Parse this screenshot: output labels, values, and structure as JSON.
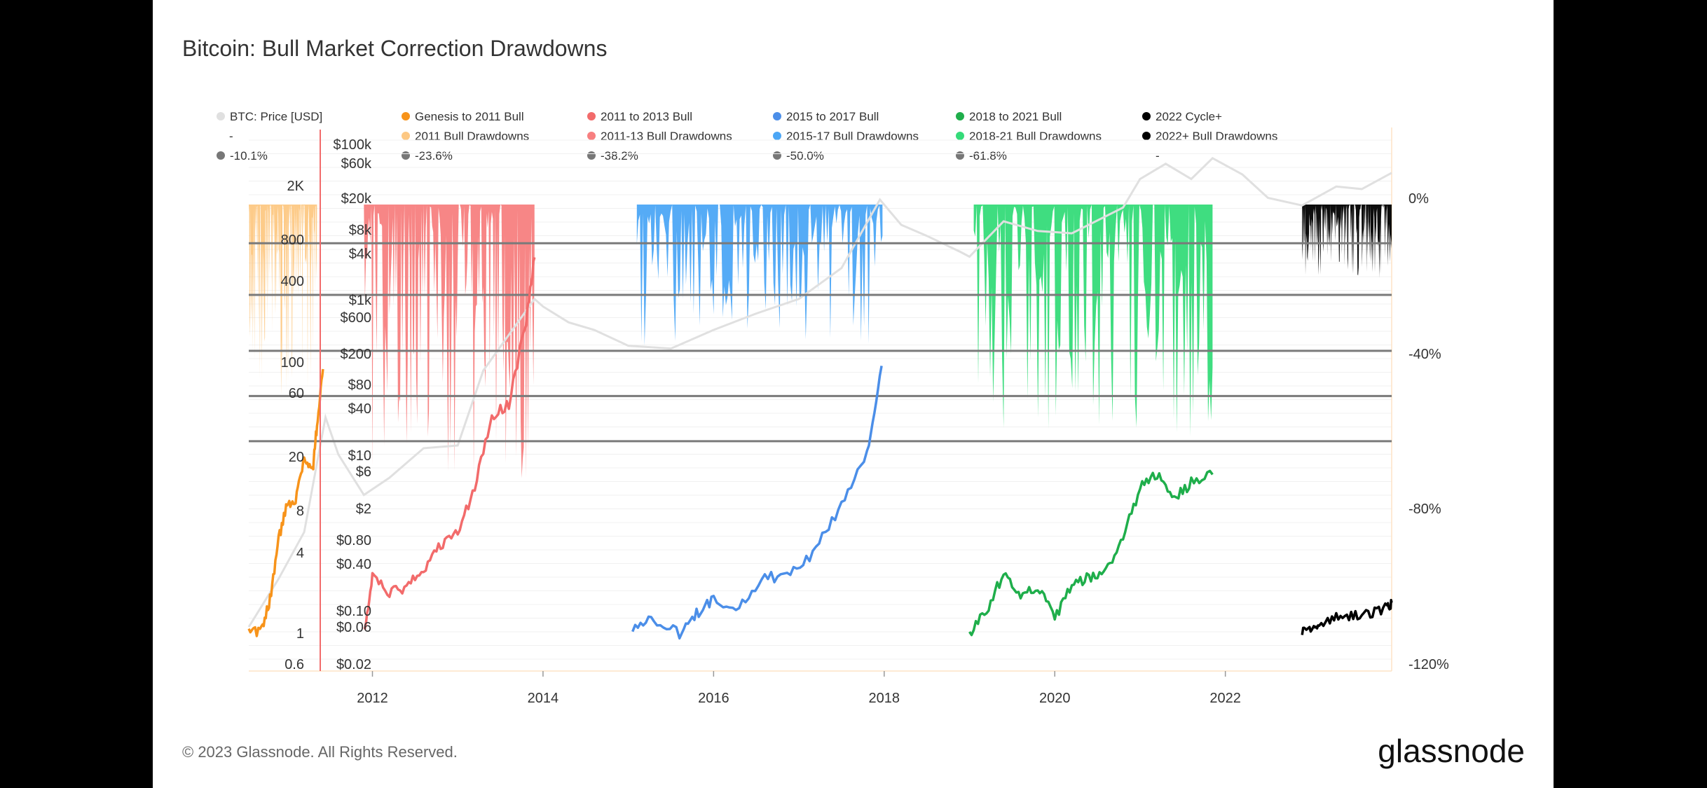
{
  "title": "Bitcoin: Bull Market Correction Drawdowns",
  "footer": {
    "copyright": "© 2023 Glassnode. All Rights Reserved.",
    "brand": "glassnode"
  },
  "colors": {
    "btc": "#e0e0e0",
    "cycle1": "#f7931a",
    "cycle1_dd": "#fdc883",
    "cycle2": "#f26b6b",
    "cycle2_dd": "#f77f80",
    "cycle3": "#4b8ee8",
    "cycle3_dd": "#4ca6f5",
    "cycle4": "#1fae4b",
    "cycle4_dd": "#35db79",
    "cycle5": "#000000",
    "cycle5_dd": "#000000",
    "threshold": "#7a7a7a",
    "axis_red": "#f26b6b"
  },
  "legend": {
    "btc_price": "BTC: Price [USD]",
    "btc_sub": "-",
    "series": [
      {
        "name": "Genesis to 2011 Bull",
        "color_key": "cycle1"
      },
      {
        "name": "2011 to 2013 Bull",
        "color_key": "cycle2"
      },
      {
        "name": "2015 to 2017 Bull",
        "color_key": "cycle3"
      },
      {
        "name": "2018 to 2021 Bull",
        "color_key": "cycle4"
      },
      {
        "name": "2022 Cycle+",
        "color_key": "cycle5"
      }
    ],
    "drawdowns": [
      {
        "name": "2011 Bull Drawdowns",
        "color_key": "cycle1_dd"
      },
      {
        "name": "2011-13 Bull Drawdowns",
        "color_key": "cycle2_dd"
      },
      {
        "name": "2015-17 Bull Drawdowns",
        "color_key": "cycle3_dd"
      },
      {
        "name": "2018-21 Bull Drawdowns",
        "color_key": "cycle4_dd"
      },
      {
        "name": "2022+ Bull Drawdowns",
        "color_key": "cycle5_dd"
      }
    ],
    "thresholds": [
      "-10.1%",
      "-23.6%",
      "-38.2%",
      "-50.0%",
      "-61.8%",
      "-"
    ]
  },
  "chart_data": {
    "type": "line",
    "title": "Bitcoin: Bull Market Correction Drawdowns",
    "scale": "log",
    "x_ticks": [
      "2012",
      "2014",
      "2016",
      "2018",
      "2020",
      "2022"
    ],
    "xlim": [
      2010.55,
      2023.95
    ],
    "y_left_ticks": [
      "2K",
      "800",
      "400",
      "100",
      "60",
      "20",
      "8",
      "4",
      "1",
      "0.6"
    ],
    "y_mid_ticks": [
      "$100k",
      "$60k",
      "$20k",
      "$8k",
      "$4k",
      "$1k",
      "$600",
      "$200",
      "$80",
      "$40",
      "$10",
      "$6",
      "$2",
      "$0.80",
      "$0.40",
      "$0.10",
      "$0.06",
      "$0.02"
    ],
    "y_right_ticks": [
      "0%",
      "-40%",
      "-80%",
      "-120%"
    ],
    "drawdown_thresholds_pct": [
      -10.1,
      -23.6,
      -38.2,
      -50.0,
      -61.8
    ],
    "series": [
      {
        "name": "Genesis to 2011 Bull",
        "key": "cycle1",
        "x": [
          2010.55,
          2010.7,
          2010.8,
          2010.9,
          2011.0,
          2011.1,
          2011.2,
          2011.3,
          2011.35,
          2011.42
        ],
        "values": [
          1,
          1.05,
          1.8,
          5,
          9,
          10,
          20,
          16,
          35,
          90
        ]
      },
      {
        "name": "2011 to 2013 Bull",
        "key": "cycle2",
        "x": [
          2011.9,
          2012.0,
          2012.2,
          2012.4,
          2012.6,
          2012.8,
          2013.0,
          2013.2,
          2013.4,
          2013.6,
          2013.8,
          2013.9
        ],
        "values": [
          1,
          2.6,
          2.0,
          2.2,
          3.0,
          4.5,
          5.6,
          12,
          40,
          50,
          200,
          600
        ]
      },
      {
        "name": "2015 to 2017 Bull",
        "key": "cycle3",
        "x": [
          2015.05,
          2015.3,
          2015.6,
          2015.8,
          2016.0,
          2016.3,
          2016.6,
          2016.9,
          2017.2,
          2017.5,
          2017.8,
          2017.97
        ],
        "values": [
          1.1,
          1.3,
          1.0,
          1.4,
          1.8,
          1.6,
          2.6,
          2.7,
          4.2,
          9,
          22,
          95
        ]
      },
      {
        "name": "2018 to 2021 Bull",
        "key": "cycle4",
        "x": [
          2019.0,
          2019.2,
          2019.4,
          2019.6,
          2019.8,
          2020.0,
          2020.2,
          2020.4,
          2020.6,
          2020.8,
          2021.0,
          2021.2,
          2021.4,
          2021.6,
          2021.85
        ],
        "values": [
          1,
          1.5,
          2.8,
          2.0,
          2.2,
          1.3,
          2.3,
          2.6,
          2.9,
          5,
          12,
          15,
          10,
          13,
          15
        ]
      },
      {
        "name": "2022 Cycle+",
        "key": "cycle5",
        "x": [
          2022.9,
          2023.0,
          2023.1,
          2023.3,
          2023.5,
          2023.7,
          2023.9,
          2023.95
        ],
        "values": [
          1,
          1.1,
          1.2,
          1.3,
          1.4,
          1.4,
          1.6,
          1.7
        ]
      }
    ],
    "drawdown_series": [
      {
        "name": "2011 Bull Drawdowns",
        "key": "cycle1_dd",
        "x_range": [
          2010.55,
          2011.35
        ],
        "min_pct": -50
      },
      {
        "name": "2011-13 Bull Drawdowns",
        "key": "cycle2_dd",
        "x_range": [
          2011.9,
          2013.9
        ],
        "min_pct": -72
      },
      {
        "name": "2015-17 Bull Drawdowns",
        "key": "cycle3_dd",
        "x_range": [
          2015.1,
          2017.98
        ],
        "min_pct": -37
      },
      {
        "name": "2018-21 Bull Drawdowns",
        "key": "cycle4_dd",
        "x_range": [
          2019.05,
          2021.85
        ],
        "min_pct": -62
      },
      {
        "name": "2022+ Bull Drawdowns",
        "key": "cycle5_dd",
        "x_range": [
          2022.9,
          2023.95
        ],
        "min_pct": -20
      }
    ],
    "btc_price_series": {
      "name": "BTC: Price [USD]",
      "x": [
        2010.55,
        2010.9,
        2011.2,
        2011.45,
        2011.6,
        2011.9,
        2012.2,
        2012.6,
        2013.0,
        2013.3,
        2013.9,
        2014.0,
        2014.3,
        2014.6,
        2015.0,
        2015.5,
        2016.0,
        2016.5,
        2017.0,
        2017.5,
        2017.95,
        2018.2,
        2018.5,
        2018.9,
        2019.0,
        2019.4,
        2019.8,
        2020.2,
        2020.8,
        2021.0,
        2021.3,
        2021.6,
        2021.85,
        2022.2,
        2022.5,
        2022.9,
        2023.3,
        2023.6,
        2023.95
      ],
      "values": [
        0.06,
        0.25,
        1,
        30,
        10,
        3,
        5,
        12,
        13,
        120,
        1000,
        800,
        500,
        400,
        250,
        230,
        400,
        650,
        1000,
        2500,
        19000,
        9000,
        6500,
        4000,
        3500,
        10000,
        7500,
        7000,
        15000,
        35000,
        55000,
        35000,
        65000,
        40000,
        20000,
        16000,
        28000,
        26000,
        42000
      ]
    }
  }
}
